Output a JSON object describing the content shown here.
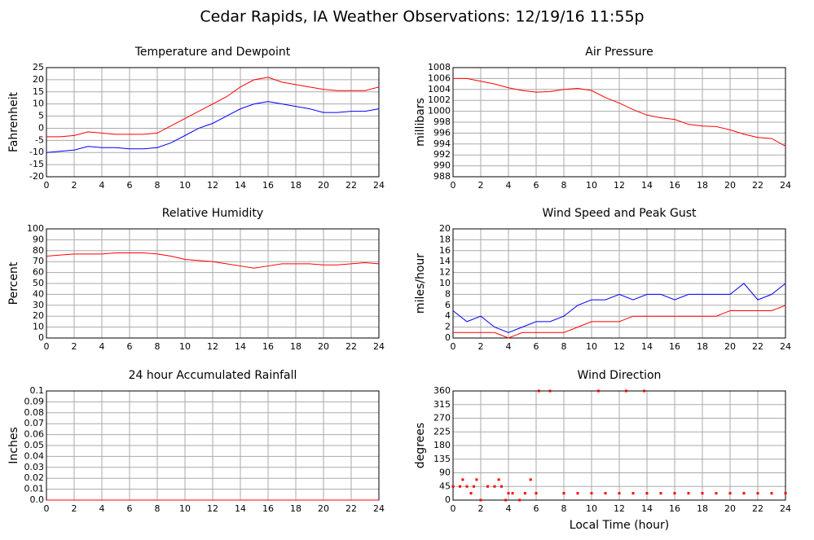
{
  "title": "Cedar Rapids, IA Weather Observations: 12/19/16 11:55p",
  "xlabel": "Local Time (hour)",
  "chart_data": [
    {
      "type": "line",
      "title": "Temperature and Dewpoint",
      "ylabel": "Fahrenheit",
      "x": [
        0,
        1,
        2,
        3,
        4,
        5,
        6,
        7,
        8,
        9,
        10,
        11,
        12,
        13,
        14,
        15,
        16,
        17,
        18,
        19,
        20,
        21,
        22,
        23,
        24
      ],
      "series": [
        {
          "color": "#ff0000",
          "values": [
            -3.5,
            -3.5,
            -3,
            -1.5,
            -2,
            -2.5,
            -2.5,
            -2.5,
            -2,
            1,
            4,
            7,
            10,
            13,
            17,
            20,
            21,
            19,
            18,
            17,
            16,
            15.5,
            15.5,
            15.5,
            17
          ]
        },
        {
          "color": "#0000ff",
          "values": [
            -10,
            -9.5,
            -9,
            -7.5,
            -8,
            -8,
            -8.5,
            -8.5,
            -8,
            -6,
            -3,
            0,
            2,
            5,
            8,
            10,
            11,
            10,
            9,
            8,
            6.5,
            6.5,
            7,
            7,
            8
          ]
        }
      ],
      "xlim": [
        0,
        24
      ],
      "xticks": [
        0,
        2,
        4,
        6,
        8,
        10,
        12,
        14,
        16,
        18,
        20,
        22,
        24
      ],
      "ylim": [
        -20,
        25
      ],
      "yticks": [
        -20,
        -15,
        -10,
        -5,
        0,
        5,
        10,
        15,
        20,
        25
      ],
      "grid": true
    },
    {
      "type": "line",
      "title": "Air Pressure",
      "ylabel": "millibars",
      "x": [
        0,
        1,
        2,
        3,
        4,
        5,
        6,
        7,
        8,
        9,
        10,
        11,
        12,
        13,
        14,
        15,
        16,
        17,
        18,
        19,
        20,
        21,
        22,
        23,
        24
      ],
      "series": [
        {
          "color": "#ff0000",
          "values": [
            1006,
            1006,
            1005.5,
            1005,
            1004.3,
            1003.8,
            1003.5,
            1003.6,
            1004,
            1004.2,
            1003.8,
            1002.5,
            1001.5,
            1000.3,
            999.3,
            998.8,
            998.5,
            997.6,
            997.3,
            997.2,
            996.6,
            995.8,
            995.2,
            995,
            993.6
          ]
        }
      ],
      "xlim": [
        0,
        24
      ],
      "xticks": [
        0,
        2,
        4,
        6,
        8,
        10,
        12,
        14,
        16,
        18,
        20,
        22,
        24
      ],
      "ylim": [
        988,
        1008
      ],
      "yticks": [
        988,
        990,
        992,
        994,
        996,
        998,
        1000,
        1002,
        1004,
        1006,
        1008
      ],
      "grid": true
    },
    {
      "type": "line",
      "title": "Relative Humidity",
      "ylabel": "Percent",
      "x": [
        0,
        1,
        2,
        3,
        4,
        5,
        6,
        7,
        8,
        9,
        10,
        11,
        12,
        13,
        14,
        15,
        16,
        17,
        18,
        19,
        20,
        21,
        22,
        23,
        24
      ],
      "series": [
        {
          "color": "#ff0000",
          "values": [
            75,
            76,
            77,
            77,
            77,
            78,
            78,
            78,
            77,
            75,
            72,
            71,
            70,
            68,
            66,
            64,
            66,
            68,
            68,
            68,
            67,
            67,
            68,
            69,
            68
          ]
        }
      ],
      "xlim": [
        0,
        24
      ],
      "xticks": [
        0,
        2,
        4,
        6,
        8,
        10,
        12,
        14,
        16,
        18,
        20,
        22,
        24
      ],
      "ylim": [
        0,
        100
      ],
      "yticks": [
        0,
        10,
        20,
        30,
        40,
        50,
        60,
        70,
        80,
        90,
        100
      ],
      "grid": true
    },
    {
      "type": "line",
      "title": "Wind Speed and Peak Gust",
      "ylabel": "miles/hour",
      "x": [
        0,
        1,
        2,
        3,
        4,
        5,
        6,
        7,
        8,
        9,
        10,
        11,
        12,
        13,
        14,
        15,
        16,
        17,
        18,
        19,
        20,
        21,
        22,
        23,
        24
      ],
      "series": [
        {
          "color": "#0000ff",
          "values": [
            5,
            3,
            4,
            2,
            1,
            2,
            3,
            3,
            4,
            6,
            7,
            7,
            8,
            7,
            8,
            8,
            7,
            8,
            8,
            8,
            8,
            10,
            7,
            8,
            10
          ]
        },
        {
          "color": "#ff0000",
          "values": [
            1,
            1,
            1,
            1,
            0,
            1,
            1,
            1,
            1,
            2,
            3,
            3,
            3,
            4,
            4,
            4,
            4,
            4,
            4,
            4,
            5,
            5,
            5,
            5,
            6
          ]
        }
      ],
      "xlim": [
        0,
        24
      ],
      "xticks": [
        0,
        2,
        4,
        6,
        8,
        10,
        12,
        14,
        16,
        18,
        20,
        22,
        24
      ],
      "ylim": [
        0,
        20
      ],
      "yticks": [
        0,
        2,
        4,
        6,
        8,
        10,
        12,
        14,
        16,
        18,
        20
      ],
      "grid": true
    },
    {
      "type": "line",
      "title": "24 hour Accumulated Rainfall",
      "ylabel": "Inches",
      "x": [
        0,
        24
      ],
      "series": [
        {
          "color": "#ff0000",
          "values": [
            0,
            0
          ]
        }
      ],
      "xlim": [
        0,
        24
      ],
      "xticks": [
        0,
        2,
        4,
        6,
        8,
        10,
        12,
        14,
        16,
        18,
        20,
        22,
        24
      ],
      "ylim": [
        0,
        0.1
      ],
      "yticks": [
        {
          "value": 0,
          "label": "0.0"
        },
        0.01,
        0.02,
        0.03,
        0.04,
        0.05,
        0.06,
        0.07,
        0.08,
        0.09,
        0.1
      ],
      "grid": true
    },
    {
      "type": "scatter",
      "title": "Wind Direction",
      "ylabel": "degrees",
      "x": [
        0,
        0.5,
        0.7,
        1,
        1.3,
        1.5,
        1.7,
        2,
        2.5,
        3,
        3.3,
        3.5,
        3.8,
        4,
        4.3,
        4.8,
        5.2,
        5.6,
        6,
        6.2,
        7,
        8,
        9,
        10,
        10.5,
        11,
        12,
        12.5,
        13,
        13.8,
        14,
        15,
        16,
        17,
        18,
        19,
        20,
        21,
        22,
        23,
        24
      ],
      "series": [
        {
          "color": "#ff0000",
          "values": [
            45,
            45,
            67.5,
            45,
            22.5,
            45,
            67.5,
            0,
            45,
            45,
            67.5,
            45,
            0,
            22.5,
            22.5,
            0,
            22.5,
            67.5,
            22.5,
            360,
            360,
            22.5,
            22.5,
            22.5,
            360,
            22.5,
            22.5,
            360,
            22.5,
            360,
            22.5,
            22.5,
            22.5,
            22.5,
            22.5,
            22.5,
            22.5,
            22.5,
            22.5,
            22.5,
            22.5
          ]
        }
      ],
      "xlim": [
        0,
        24
      ],
      "xticks": [
        0,
        2,
        4,
        6,
        8,
        10,
        12,
        14,
        16,
        18,
        20,
        22,
        24
      ],
      "ylim": [
        0,
        360
      ],
      "yticks": [
        0,
        45,
        90,
        135,
        180,
        225,
        270,
        315,
        360
      ],
      "grid": true
    }
  ]
}
